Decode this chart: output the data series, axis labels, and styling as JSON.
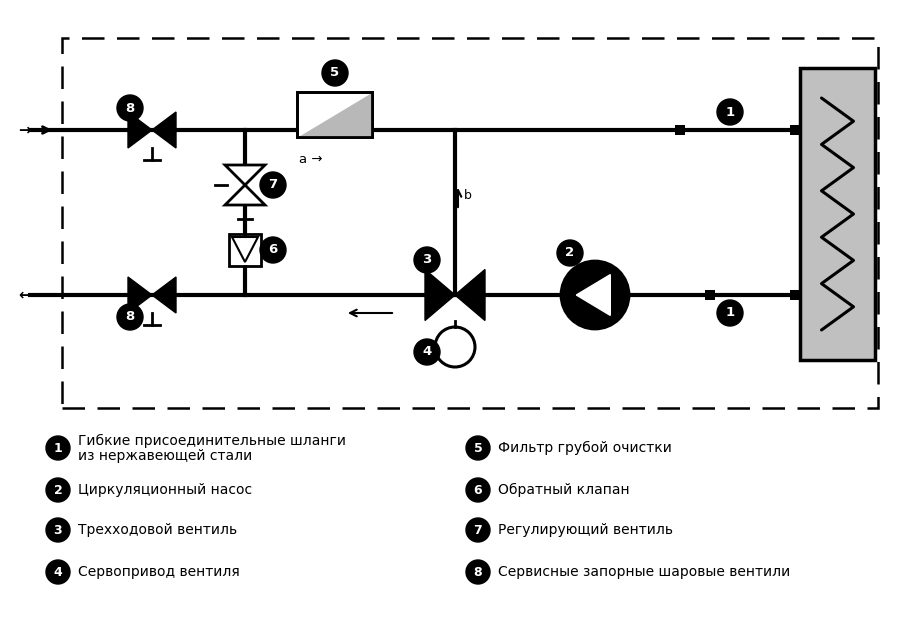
{
  "bg_color": "#ffffff",
  "line_color": "#000000",
  "legend_items_left": [
    [
      "1",
      "Гибкие присоединительные шланги\nиз нержавеющей стали"
    ],
    [
      "2",
      "Циркуляционный насос"
    ],
    [
      "3",
      "Трехходовой вентиль"
    ],
    [
      "4",
      "Сервопривод вентиля"
    ]
  ],
  "legend_items_right": [
    [
      "5",
      "Фильтр грубой очистки"
    ],
    [
      "6",
      "Обратный клапан"
    ],
    [
      "7",
      "Регулирующий вентиль"
    ],
    [
      "8",
      "Сервисные запорные шаровые вентили"
    ]
  ]
}
